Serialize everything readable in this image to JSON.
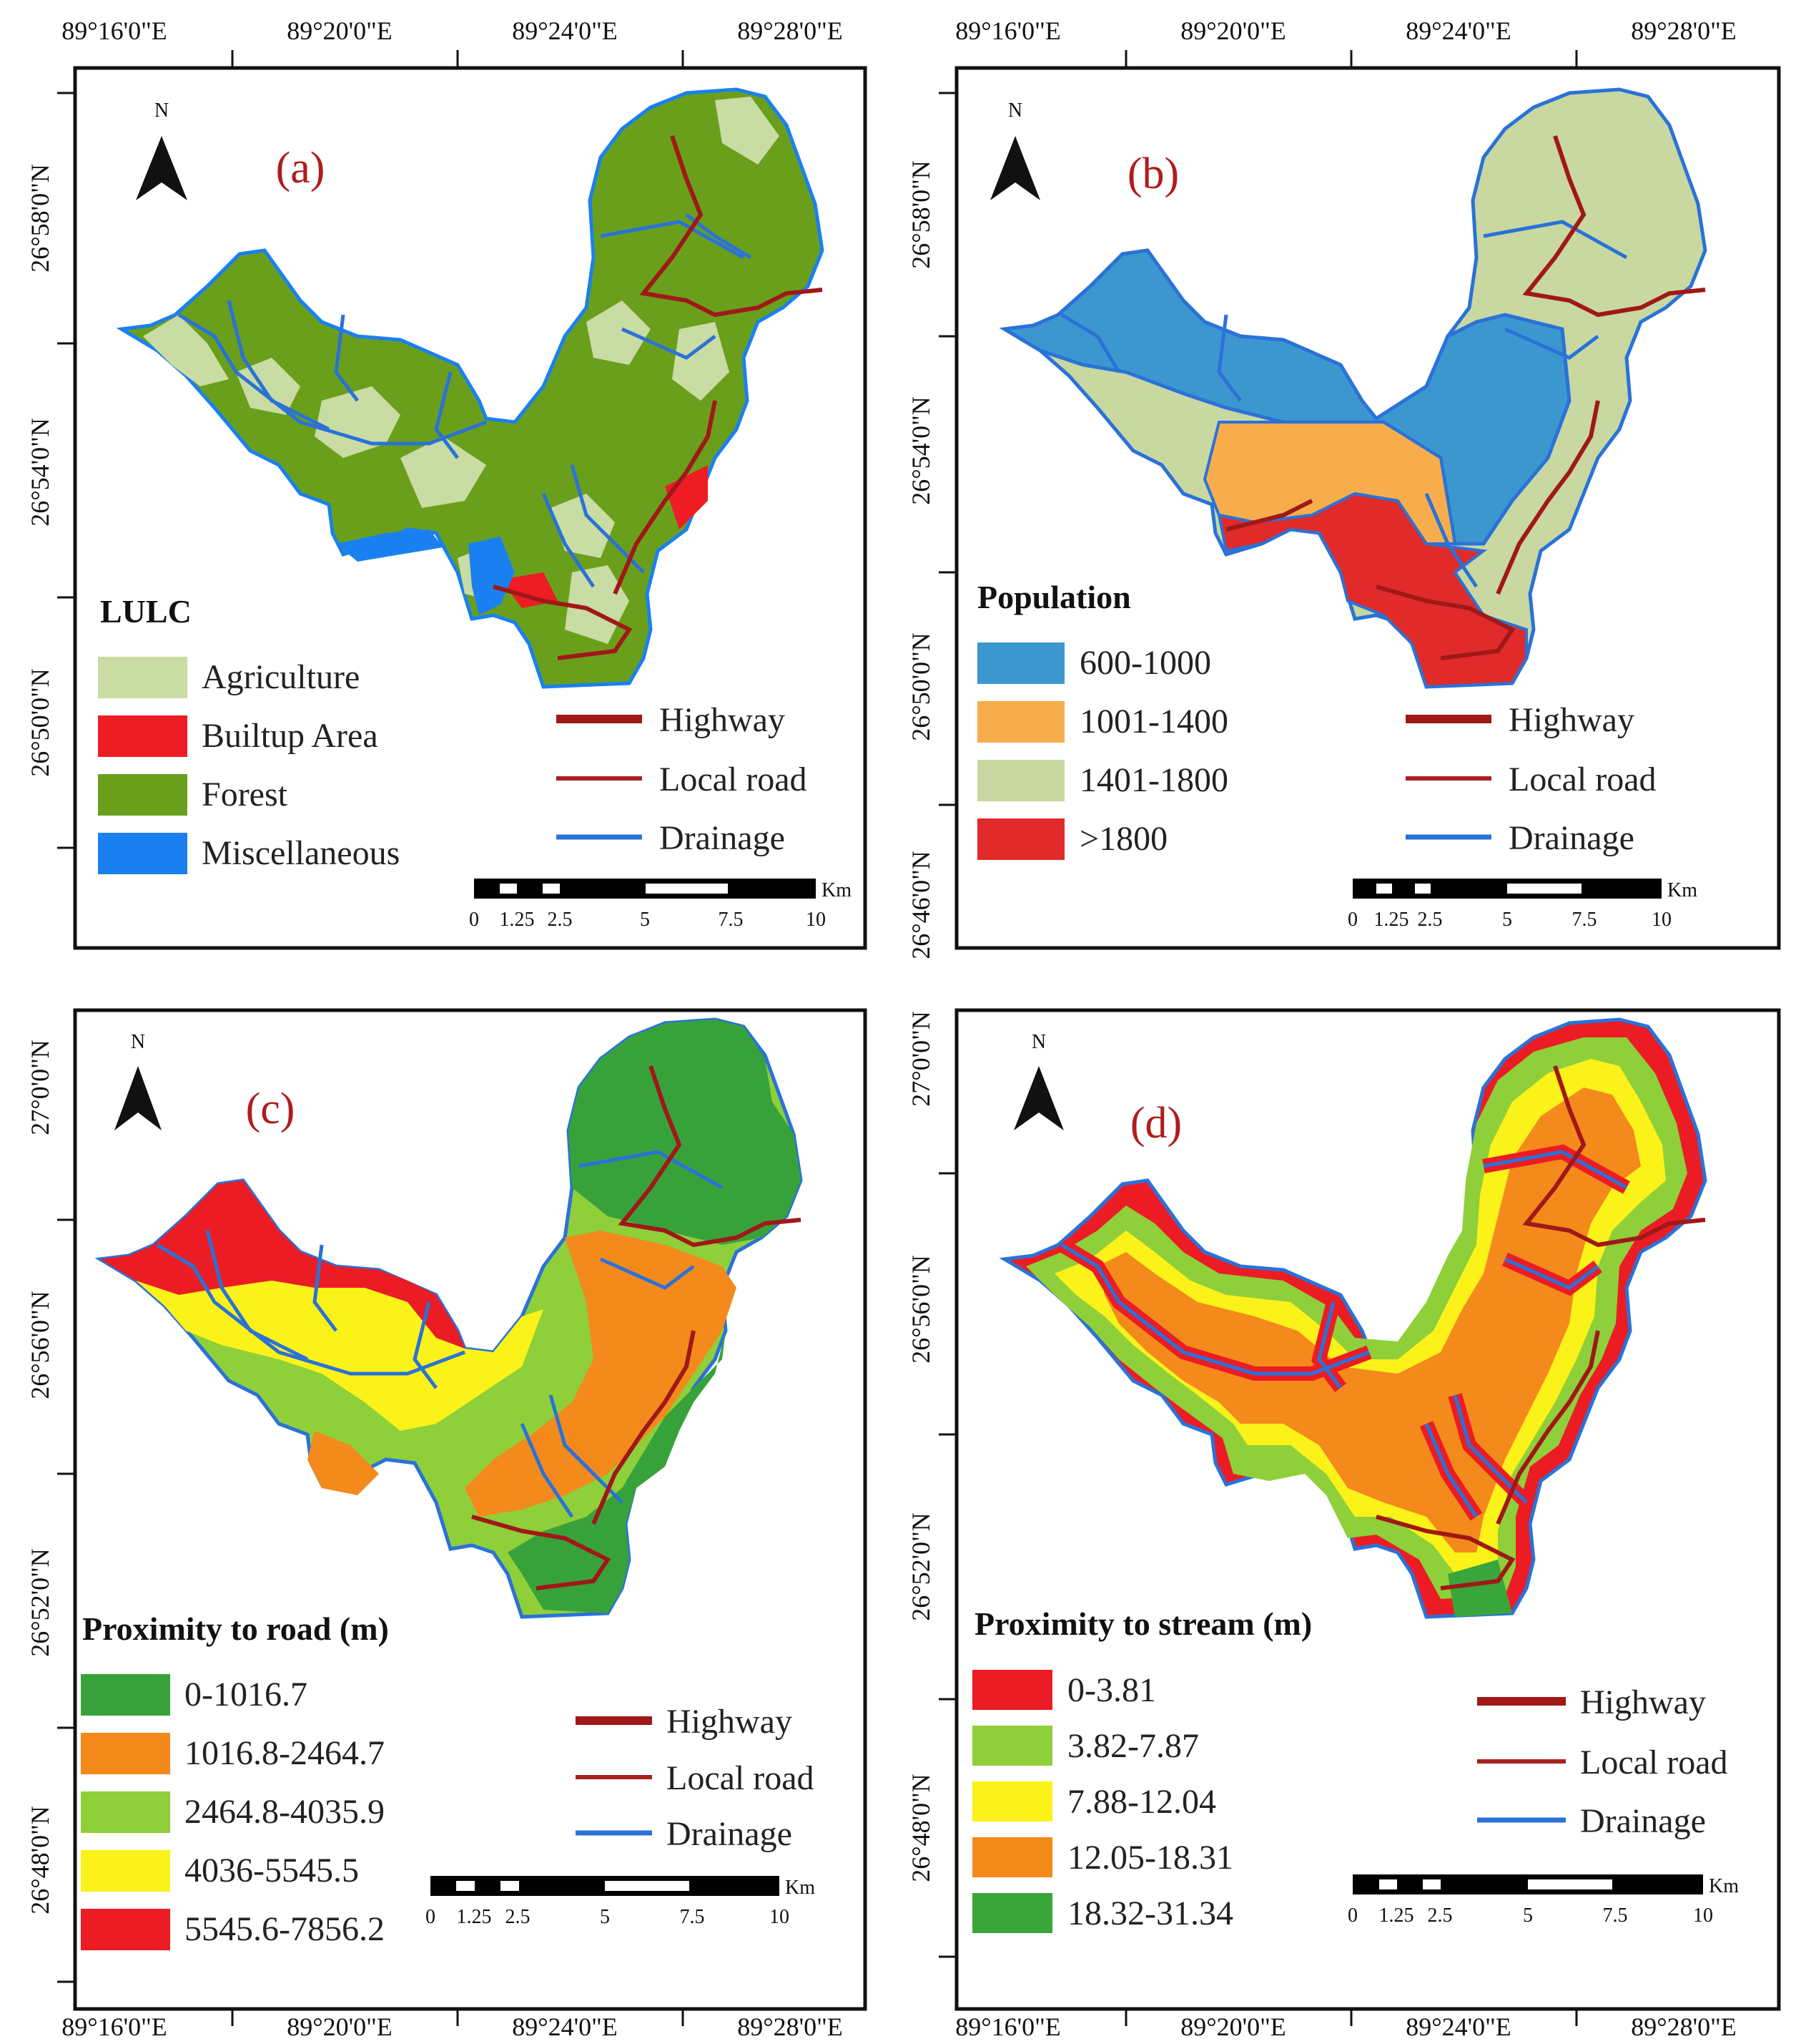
{
  "coords": {
    "top_longitudes": [
      "89°16'0\"E",
      "89°20'0\"E",
      "89°24'0\"E",
      "89°28'0\"E"
    ],
    "bottom_longitudes": [
      "89°16'0\"E",
      "89°20'0\"E",
      "89°24'0\"E",
      "89°28'0\"E"
    ],
    "latitudes_a": [
      "26°58'0\"N",
      "26°54'0\"N",
      "26°50'0\"N"
    ],
    "latitudes_b": [
      "26°58'0\"N",
      "26°54'0\"N",
      "26°50'0\"N",
      "26°46'0\"N"
    ],
    "latitudes_c": [
      "27°0'0\"N",
      "26°56'0\"N",
      "26°52'0\"N",
      "26°48'0\"N"
    ],
    "latitudes_d": [
      "27°0'0\"N",
      "26°56'0\"N",
      "26°52'0\"N",
      "26°48'0\"N"
    ]
  },
  "north_label": "N",
  "scale_bar": {
    "ticks": [
      "0",
      "1.25",
      "2.5",
      "5",
      "7.5",
      "10"
    ],
    "unit": "Km"
  },
  "line_legend": [
    {
      "label": "Highway",
      "color": "#a01818"
    },
    {
      "label": "Local road",
      "color": "#a82020"
    },
    {
      "label": "Drainage",
      "color": "#2a72d8"
    }
  ],
  "panels": [
    {
      "id": "a",
      "letter": "(a)",
      "legend_title": "LULC",
      "classes": [
        {
          "label": "Agriculture",
          "color": "#c9dca3"
        },
        {
          "label": "Builtup Area",
          "color": "#ee1c23"
        },
        {
          "label": "Forest",
          "color": "#6a9f1c"
        },
        {
          "label": "Miscellaneous",
          "color": "#1a80f0"
        }
      ]
    },
    {
      "id": "b",
      "letter": "(b)",
      "legend_title": "Population",
      "classes": [
        {
          "label": "600-1000",
          "color": "#3c97cf"
        },
        {
          "label": "1001-1400",
          "color": "#f8ad4c"
        },
        {
          "label": "1401-1800",
          "color": "#c8d8a0"
        },
        {
          "label": ">1800",
          "color": "#e12a2a"
        }
      ]
    },
    {
      "id": "c",
      "letter": "(c)",
      "legend_title": "Proximity to road (m)",
      "classes": [
        {
          "label": "0-1016.7",
          "color": "#38a23a"
        },
        {
          "label": "1016.8-2464.7",
          "color": "#f48a1c"
        },
        {
          "label": "2464.8-4035.9",
          "color": "#8fcf3a"
        },
        {
          "label": "4036-5545.5",
          "color": "#fbf219"
        },
        {
          "label": "5545.6-7856.2",
          "color": "#ec1c24"
        }
      ]
    },
    {
      "id": "d",
      "letter": "(d)",
      "legend_title": "Proximity to stream (m)",
      "classes": [
        {
          "label": "0-3.81",
          "color": "#ec1c24"
        },
        {
          "label": "3.82-7.87",
          "color": "#8fcf3a"
        },
        {
          "label": "7.88-12.04",
          "color": "#fbf219"
        },
        {
          "label": "12.05-18.31",
          "color": "#f48a1c"
        },
        {
          "label": "18.32-31.34",
          "color": "#3aa53a"
        }
      ]
    }
  ]
}
